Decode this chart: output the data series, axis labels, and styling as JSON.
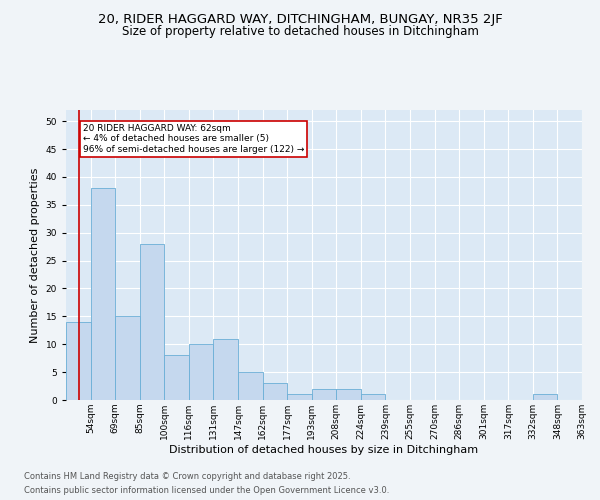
{
  "title_line1": "20, RIDER HAGGARD WAY, DITCHINGHAM, BUNGAY, NR35 2JF",
  "title_line2": "Size of property relative to detached houses in Ditchingham",
  "xlabel": "Distribution of detached houses by size in Ditchingham",
  "ylabel": "Number of detached properties",
  "bins": [
    "54sqm",
    "69sqm",
    "85sqm",
    "100sqm",
    "116sqm",
    "131sqm",
    "147sqm",
    "162sqm",
    "177sqm",
    "193sqm",
    "208sqm",
    "224sqm",
    "239sqm",
    "255sqm",
    "270sqm",
    "286sqm",
    "301sqm",
    "317sqm",
    "332sqm",
    "348sqm",
    "363sqm"
  ],
  "bar_values": [
    14,
    38,
    15,
    28,
    8,
    10,
    11,
    5,
    3,
    1,
    2,
    2,
    1,
    0,
    0,
    0,
    0,
    0,
    0,
    1,
    0
  ],
  "bar_color": "#c5d8ee",
  "bar_edge_color": "#6aaed6",
  "bg_color": "#dce9f5",
  "grid_color": "#ffffff",
  "annotation_text": "20 RIDER HAGGARD WAY: 62sqm\n← 4% of detached houses are smaller (5)\n96% of semi-detached houses are larger (122) →",
  "annotation_box_color": "#ffffff",
  "annotation_box_edge": "#cc0000",
  "vline_color": "#cc0000",
  "property_size": 62,
  "bin_edges_num": [
    54,
    69,
    85,
    100,
    116,
    131,
    147,
    162,
    177,
    193,
    208,
    224,
    239,
    255,
    270,
    286,
    301,
    317,
    332,
    348,
    363
  ],
  "ylim": [
    0,
    52
  ],
  "yticks": [
    0,
    5,
    10,
    15,
    20,
    25,
    30,
    35,
    40,
    45,
    50
  ],
  "footer_line1": "Contains HM Land Registry data © Crown copyright and database right 2025.",
  "footer_line2": "Contains public sector information licensed under the Open Government Licence v3.0.",
  "title_fontsize": 9.5,
  "subtitle_fontsize": 8.5,
  "axis_label_fontsize": 8,
  "tick_fontsize": 6.5,
  "footer_fontsize": 6,
  "fig_bg": "#f0f4f8"
}
